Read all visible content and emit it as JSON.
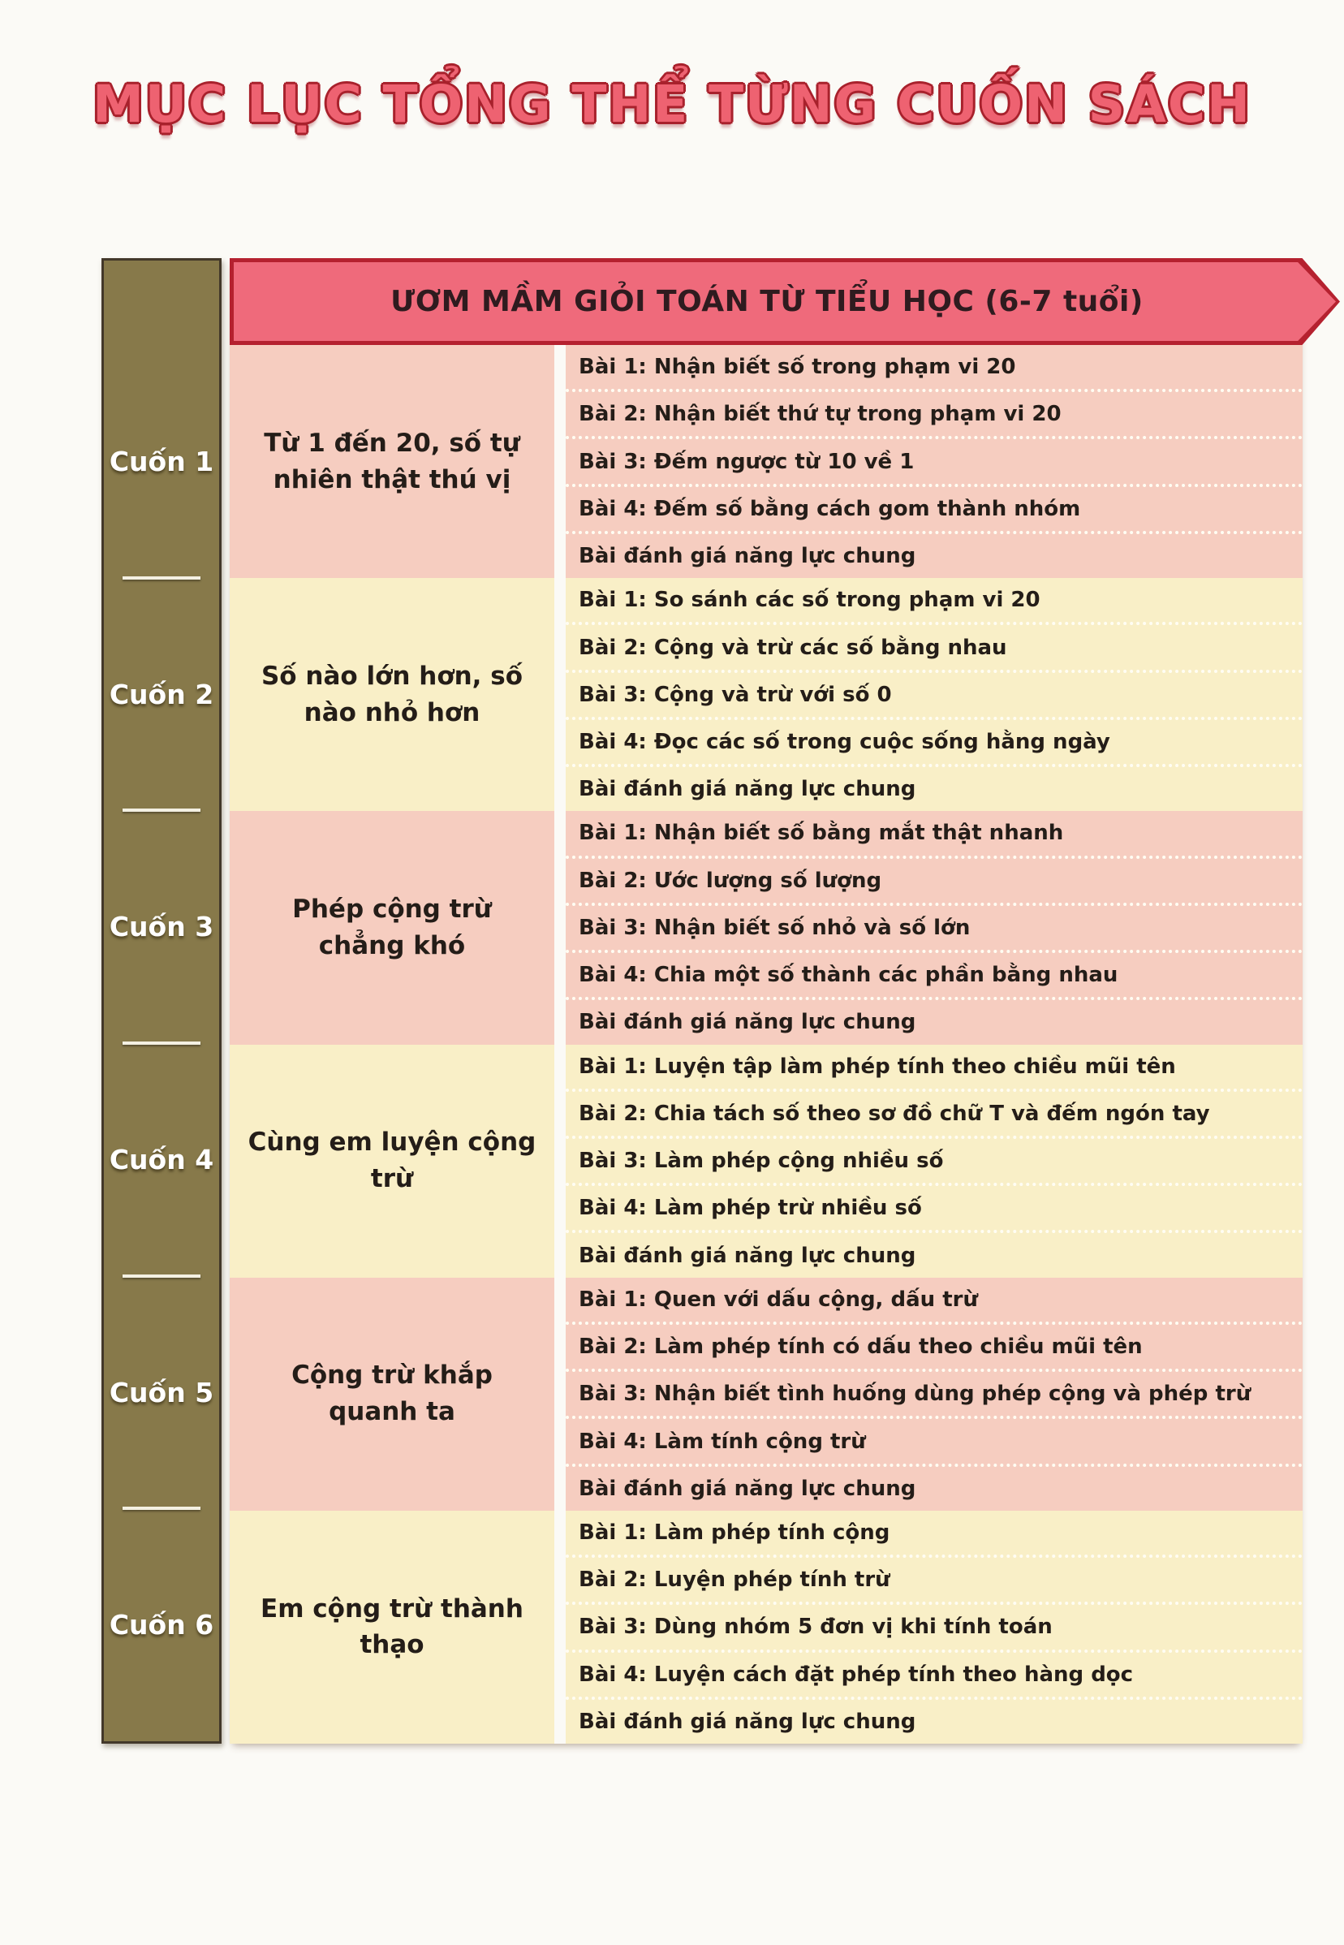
{
  "page": {
    "title": "MỤC LỤC TỔNG THỂ TỪNG CUỐN SÁCH"
  },
  "table": {
    "header": "ƯƠM MẦM GIỎI TOÁN TỪ TIỂU HỌC (6-7 tuổi)",
    "books": [
      {
        "label": "Cuốn 1",
        "title": "Từ 1 đến 20, số tự nhiên thật thú vị",
        "tone": "pink",
        "lessons": [
          "Bài 1: Nhận biết số trong phạm vi 20",
          "Bài 2: Nhận biết thứ tự trong phạm vi 20",
          "Bài 3: Đếm ngược từ 10 về 1",
          "Bài 4: Đếm số bằng cách gom thành nhóm",
          "Bài đánh giá năng lực chung"
        ]
      },
      {
        "label": "Cuốn 2",
        "title": "Số nào lớn hơn, số nào nhỏ hơn",
        "tone": "cream",
        "lessons": [
          "Bài 1: So sánh các số trong phạm vi 20",
          "Bài 2: Cộng và trừ các số bằng nhau",
          "Bài 3: Cộng và trừ với số 0",
          "Bài 4: Đọc các số trong cuộc sống hằng ngày",
          "Bài đánh giá năng lực chung"
        ]
      },
      {
        "label": "Cuốn 3",
        "title": "Phép cộng trừ chẳng khó",
        "tone": "pink",
        "lessons": [
          "Bài 1: Nhận biết số bằng mắt thật nhanh",
          "Bài 2: Ước lượng số lượng",
          "Bài 3: Nhận biết số nhỏ và số lớn",
          "Bài 4: Chia một số thành các phần bằng nhau",
          "Bài đánh giá năng lực chung"
        ]
      },
      {
        "label": "Cuốn 4",
        "title": "Cùng em luyện cộng trừ",
        "tone": "cream",
        "lessons": [
          "Bài 1: Luyện tập làm phép tính theo chiều mũi tên",
          "Bài 2: Chia tách số theo sơ đồ chữ T và đếm ngón tay",
          "Bài 3: Làm phép cộng nhiều số",
          "Bài 4: Làm phép trừ nhiều số",
          "Bài đánh giá năng lực chung"
        ]
      },
      {
        "label": "Cuốn 5",
        "title": "Cộng trừ khắp quanh ta",
        "tone": "pink",
        "lessons": [
          "Bài 1: Quen với dấu cộng, dấu trừ",
          "Bài 2: Làm phép tính có dấu theo chiều mũi tên",
          "Bài 3: Nhận biết tình huống dùng phép cộng và phép trừ",
          "Bài 4: Làm tính cộng trừ",
          "Bài đánh giá năng lực chung"
        ]
      },
      {
        "label": "Cuốn 6",
        "title": "Em cộng trừ thành thạo",
        "tone": "cream",
        "lessons": [
          "Bài 1: Làm phép tính cộng",
          "Bài 2: Luyện phép tính trừ",
          "Bài 3: Dùng nhóm 5 đơn vị khi tính toán",
          "Bài 4: Luyện cách đặt phép tính theo hàng dọc",
          "Bài đánh giá năng lực chung"
        ]
      }
    ]
  },
  "colors": {
    "title_red": "#ee6271",
    "title_outline": "#a8212c",
    "spine_olive": "#87794a",
    "spine_border": "#43382a",
    "spine_text": "#ffffff",
    "banner_fill": "#ef6a7b",
    "banner_border": "#b5212f",
    "banner_text": "#2f1b1f",
    "row_pink": "#f6cdc0",
    "row_cream": "#f9efc7",
    "lesson_text": "#241d18",
    "page_bg": "#fbfaf6"
  }
}
